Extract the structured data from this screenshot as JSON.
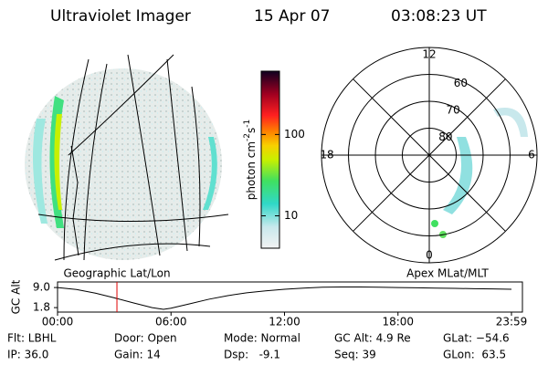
{
  "header": {
    "instrument": "Ultraviolet Imager",
    "date": "15 Apr 07",
    "time": "03:08:23 UT"
  },
  "image_labels": {
    "left": "Geographic Lat/Lon",
    "right": "Apex MLat/MLT"
  },
  "chart_data": [
    {
      "type": "colorbar",
      "label": "photon cm",
      "label_exp1": "-2",
      "label_unit2": "s",
      "label_exp2": "-1",
      "log_scale": true,
      "ylim": [
        4,
        600
      ],
      "yticks": [
        10,
        100
      ]
    },
    {
      "type": "polar",
      "rlim": [
        90,
        50
      ],
      "rticks": [
        80,
        70,
        60
      ],
      "theta_ticks": [
        12,
        18,
        6,
        0
      ]
    },
    {
      "type": "line",
      "ylabel": "GC Alt",
      "color": "#000000",
      "marker_color": "#e00000",
      "marker_x": 3.14,
      "x": [
        0,
        1,
        2,
        3,
        4,
        5,
        5.6,
        6,
        7,
        8,
        9,
        10,
        11,
        12,
        13,
        14,
        15,
        16,
        17,
        18,
        19,
        20,
        21,
        22,
        23,
        24
      ],
      "series": [
        {
          "values": [
            9.0,
            8.3,
            7.0,
            5.3,
            3.5,
            1.8,
            1.2,
            1.6,
            3.2,
            4.8,
            6.1,
            7.1,
            7.8,
            8.4,
            8.8,
            9.1,
            9.2,
            9.2,
            9.1,
            9.0,
            8.9,
            8.8,
            8.7,
            8.6,
            8.5,
            8.4
          ]
        }
      ],
      "xlim": [
        0,
        24
      ],
      "ylim": [
        0.2,
        11
      ],
      "xticks": [
        {
          "value": 0,
          "label": "00:00"
        },
        {
          "value": 6,
          "label": "06:00"
        },
        {
          "value": 12,
          "label": "12:00"
        },
        {
          "value": 18,
          "label": "18:00"
        },
        {
          "value": 24,
          "label": "23:59"
        }
      ],
      "yticks": [
        {
          "value": 9,
          "label": "9.0"
        },
        {
          "value": 1.8,
          "label": "1.8"
        }
      ]
    }
  ],
  "footer": {
    "rows": [
      [
        "Flt: LBHL",
        "Door: Open",
        "Mode: Normal",
        "GC Alt: 4.9 Re",
        "GLat: −54.6"
      ],
      [
        "IP: 36.0",
        "Gain: 14",
        "Dsp:   -9.1",
        "Seq: 39",
        "GLon:  63.5"
      ]
    ]
  }
}
